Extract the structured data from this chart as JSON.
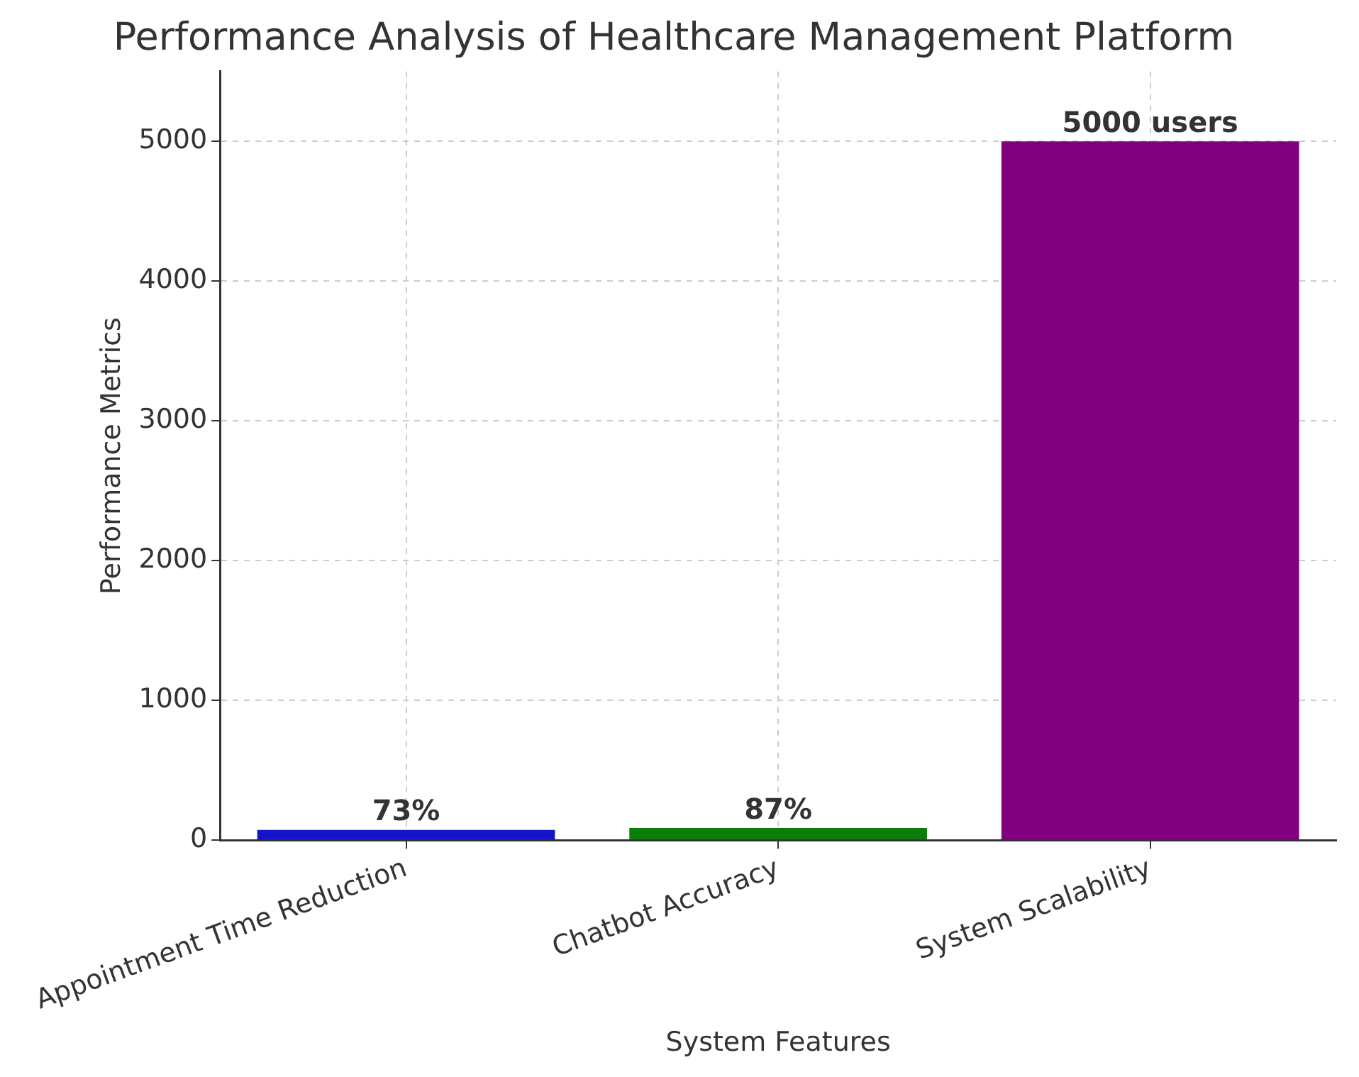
{
  "chart_data": {
    "type": "bar",
    "title": "Performance Analysis of Healthcare Management Platform",
    "xlabel": "System Features",
    "ylabel": "Performance Metrics",
    "categories": [
      "Appointment Time Reduction",
      "Chatbot Accuracy",
      "System Scalability"
    ],
    "values": [
      73,
      87,
      5000
    ],
    "colors": [
      "#1414c8",
      "#0a7d0a",
      "#800080"
    ],
    "value_labels": [
      "73%",
      "87%",
      "5000 users"
    ],
    "ylim": [
      0,
      5500
    ],
    "yticks": [
      0,
      1000,
      2000,
      3000,
      4000,
      5000
    ],
    "grid": true,
    "legend": false
  }
}
